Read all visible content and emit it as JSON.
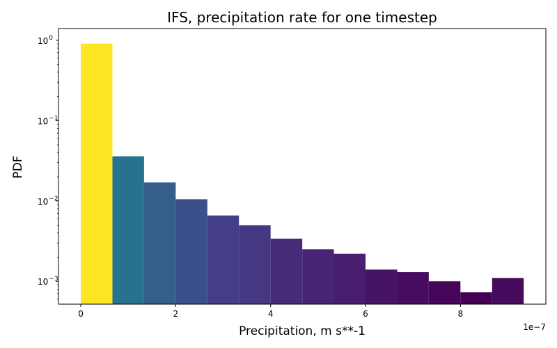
{
  "chart_data": {
    "type": "bar",
    "title": "IFS, precipitation rate for one timestep",
    "xlabel": "Precipitation, m s**-1",
    "ylabel": "PDF",
    "x_offset_label": "1e−7",
    "x_scale": 1e-07,
    "yscale": "log",
    "xlim": [
      -0.47,
      9.8
    ],
    "ylim": [
      0.00052,
      1.4
    ],
    "grid": false,
    "legend": "none",
    "x_ticks": [
      {
        "value": 0,
        "label": "0"
      },
      {
        "value": 2,
        "label": "2"
      },
      {
        "value": 4,
        "label": "4"
      },
      {
        "value": 6,
        "label": "6"
      },
      {
        "value": 8,
        "label": "8"
      }
    ],
    "y_ticks": [
      {
        "value": 0.001,
        "base": "10",
        "exp": "−3"
      },
      {
        "value": 0.01,
        "base": "10",
        "exp": "−2"
      },
      {
        "value": 0.1,
        "base": "10",
        "exp": "−1"
      },
      {
        "value": 1,
        "base": "10",
        "exp": "0"
      }
    ],
    "bins": [
      {
        "x0": 0.0,
        "x1": 0.667,
        "value": 0.91,
        "color": "#fde725"
      },
      {
        "x0": 0.667,
        "x1": 1.333,
        "value": 0.036,
        "color": "#27728e"
      },
      {
        "x0": 1.333,
        "x1": 2.0,
        "value": 0.017,
        "color": "#355e8d"
      },
      {
        "x0": 2.0,
        "x1": 2.667,
        "value": 0.0105,
        "color": "#3b4f8a"
      },
      {
        "x0": 2.667,
        "x1": 3.333,
        "value": 0.0066,
        "color": "#433e85"
      },
      {
        "x0": 3.333,
        "x1": 4.0,
        "value": 0.005,
        "color": "#453781"
      },
      {
        "x0": 4.0,
        "x1": 4.667,
        "value": 0.0034,
        "color": "#472c7a"
      },
      {
        "x0": 4.667,
        "x1": 5.333,
        "value": 0.0025,
        "color": "#482475"
      },
      {
        "x0": 5.333,
        "x1": 6.0,
        "value": 0.0022,
        "color": "#481f70"
      },
      {
        "x0": 6.0,
        "x1": 6.667,
        "value": 0.0014,
        "color": "#471365"
      },
      {
        "x0": 6.667,
        "x1": 7.333,
        "value": 0.0013,
        "color": "#460c5f"
      },
      {
        "x0": 7.333,
        "x1": 8.0,
        "value": 0.001,
        "color": "#450559"
      },
      {
        "x0": 8.0,
        "x1": 8.667,
        "value": 0.00073,
        "color": "#440154"
      },
      {
        "x0": 8.667,
        "x1": 9.333,
        "value": 0.0011,
        "color": "#450a5c"
      }
    ]
  }
}
